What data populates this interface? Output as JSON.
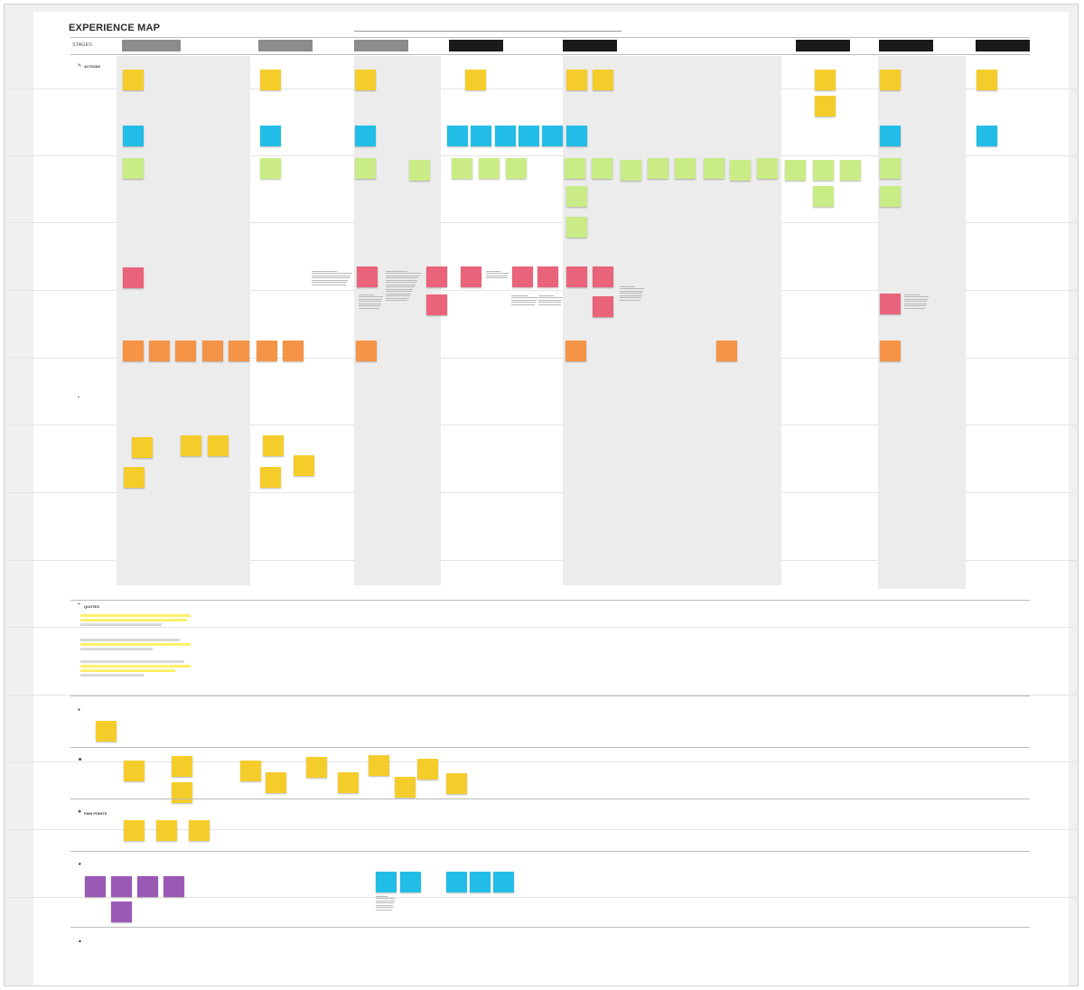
{
  "board": {
    "title": "EXPERIENCE MAP",
    "stages_label": "STAGES",
    "header_note": "",
    "colors": {
      "yellow": "#f5cd2b",
      "blue": "#22bde6",
      "green": "#c9ec86",
      "red": "#e9637a",
      "orange": "#f59446",
      "purple": "#9b59b6",
      "gray_stage": "#8c8c8c",
      "dark_stage": "#1a1a1a",
      "column_shade": "#ececec"
    }
  },
  "stages": [
    {
      "label": "",
      "color": "#8c8c8c"
    },
    {
      "label": "",
      "color": "#8c8c8c"
    },
    {
      "label": "",
      "color": "#8c8c8c"
    },
    {
      "label": "",
      "color": "#1a1a1a"
    },
    {
      "label": "",
      "color": "#1a1a1a"
    },
    {
      "label": "",
      "color": "#1a1a1a"
    },
    {
      "label": "",
      "color": "#1a1a1a"
    },
    {
      "label": "",
      "color": "#1a1a1a"
    }
  ],
  "rows": {
    "actions_title": "ACTIONS",
    "row1": "",
    "row2": "",
    "row3": "",
    "row4": "",
    "row5": "",
    "side_label": ""
  },
  "sections": {
    "various": "",
    "quotes": "QUOTES",
    "status_quo": "",
    "feelings": "",
    "pain_points": "PAIN POINTS",
    "opportunities": "",
    "internal": ""
  },
  "opportunities_caption": ""
}
